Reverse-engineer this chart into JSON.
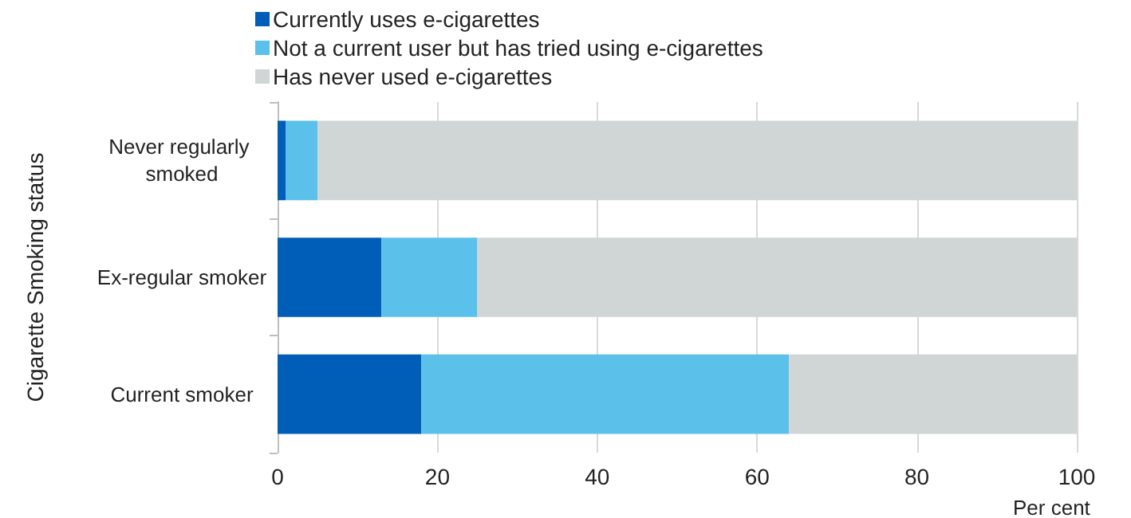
{
  "chart_data": {
    "type": "bar",
    "orientation": "horizontal",
    "stacked": true,
    "categories": [
      "Never regularly smoked",
      "Ex-regular smoker",
      "Current smoker"
    ],
    "series": [
      {
        "name": "Currently uses e-cigarettes",
        "color": "#005eb8",
        "values": [
          1,
          13,
          18
        ]
      },
      {
        "name": "Not a current user but has tried using e-cigarettes",
        "color": "#5bc0ea",
        "values": [
          4,
          12,
          46
        ]
      },
      {
        "name": "Has never used e-cigarettes",
        "color": "#d0d5d5",
        "values": [
          95,
          75,
          36
        ]
      }
    ],
    "xlim": [
      0,
      100
    ],
    "xticks": [
      0,
      20,
      40,
      60,
      80,
      100
    ],
    "xlabel": "Per cent",
    "ylabel": "Cigarette Smoking status",
    "grid": "x",
    "legend": "top left"
  }
}
